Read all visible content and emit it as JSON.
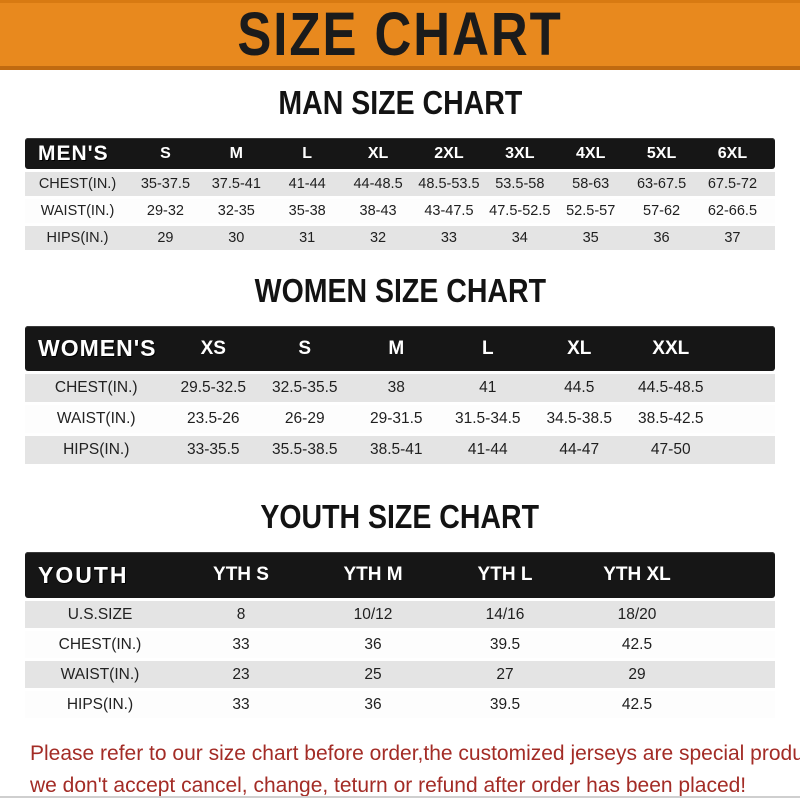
{
  "banner": {
    "title": "SIZE CHART",
    "bg_color": "#E8891E",
    "edge_color": "#C06A10",
    "text_color": "#1B1B1B"
  },
  "colors": {
    "table_header_bg": "#161616",
    "table_header_text": "#FFFFFF",
    "row_gray": "#E4E4E4",
    "row_white": "#FDFDFD",
    "notice_red": "#A32C26"
  },
  "tables": [
    {
      "id": "men",
      "heading": "MAN SIZE CHART",
      "header_label": "MEN'S",
      "sizes": [
        "S",
        "M",
        "L",
        "XL",
        "2XL",
        "3XL",
        "4XL",
        "5XL",
        "6XL"
      ],
      "rows": [
        {
          "label": "CHEST(IN.)",
          "values": [
            "35-37.5",
            "37.5-41",
            "41-44",
            "44-48.5",
            "48.5-53.5",
            "53.5-58",
            "58-63",
            "63-67.5",
            "67.5-72"
          ]
        },
        {
          "label": "WAIST(IN.)",
          "values": [
            "29-32",
            "32-35",
            "35-38",
            "38-43",
            "43-47.5",
            "47.5-52.5",
            "52.5-57",
            "57-62",
            "62-66.5"
          ]
        },
        {
          "label": "HIPS(IN.)",
          "values": [
            "29",
            "30",
            "31",
            "32",
            "33",
            "34",
            "35",
            "36",
            "37"
          ]
        }
      ]
    },
    {
      "id": "women",
      "heading": "WOMEN SIZE CHART",
      "header_label": "WOMEN'S",
      "sizes": [
        "XS",
        "S",
        "M",
        "L",
        "XL",
        "XXL"
      ],
      "rows": [
        {
          "label": "CHEST(IN.)",
          "values": [
            "29.5-32.5",
            "32.5-35.5",
            "38",
            "41",
            "44.5",
            "44.5-48.5"
          ]
        },
        {
          "label": "WAIST(IN.)",
          "values": [
            "23.5-26",
            "26-29",
            "29-31.5",
            "31.5-34.5",
            "34.5-38.5",
            "38.5-42.5"
          ]
        },
        {
          "label": "HIPS(IN.)",
          "values": [
            "33-35.5",
            "35.5-38.5",
            "38.5-41",
            "41-44",
            "44-47",
            "47-50"
          ]
        }
      ]
    },
    {
      "id": "youth",
      "heading": "YOUTH SIZE CHART",
      "header_label": "YOUTH",
      "sizes": [
        "YTH S",
        "YTH M",
        "YTH L",
        "YTH XL"
      ],
      "rows": [
        {
          "label": "U.S.SIZE",
          "values": [
            "8",
            "10/12",
            "14/16",
            "18/20"
          ]
        },
        {
          "label": "CHEST(IN.)",
          "values": [
            "33",
            "36",
            "39.5",
            "42.5"
          ]
        },
        {
          "label": "WAIST(IN.)",
          "values": [
            "23",
            "25",
            "27",
            "29"
          ]
        },
        {
          "label": "HIPS(IN.)",
          "values": [
            "33",
            "36",
            "39.5",
            "42.5"
          ]
        }
      ]
    }
  ],
  "notice": {
    "line1": "Please refer to our size chart before order,the customized jerseys are special products,",
    "line2": "we don't accept cancel, change, teturn or refund after order has been placed!"
  }
}
